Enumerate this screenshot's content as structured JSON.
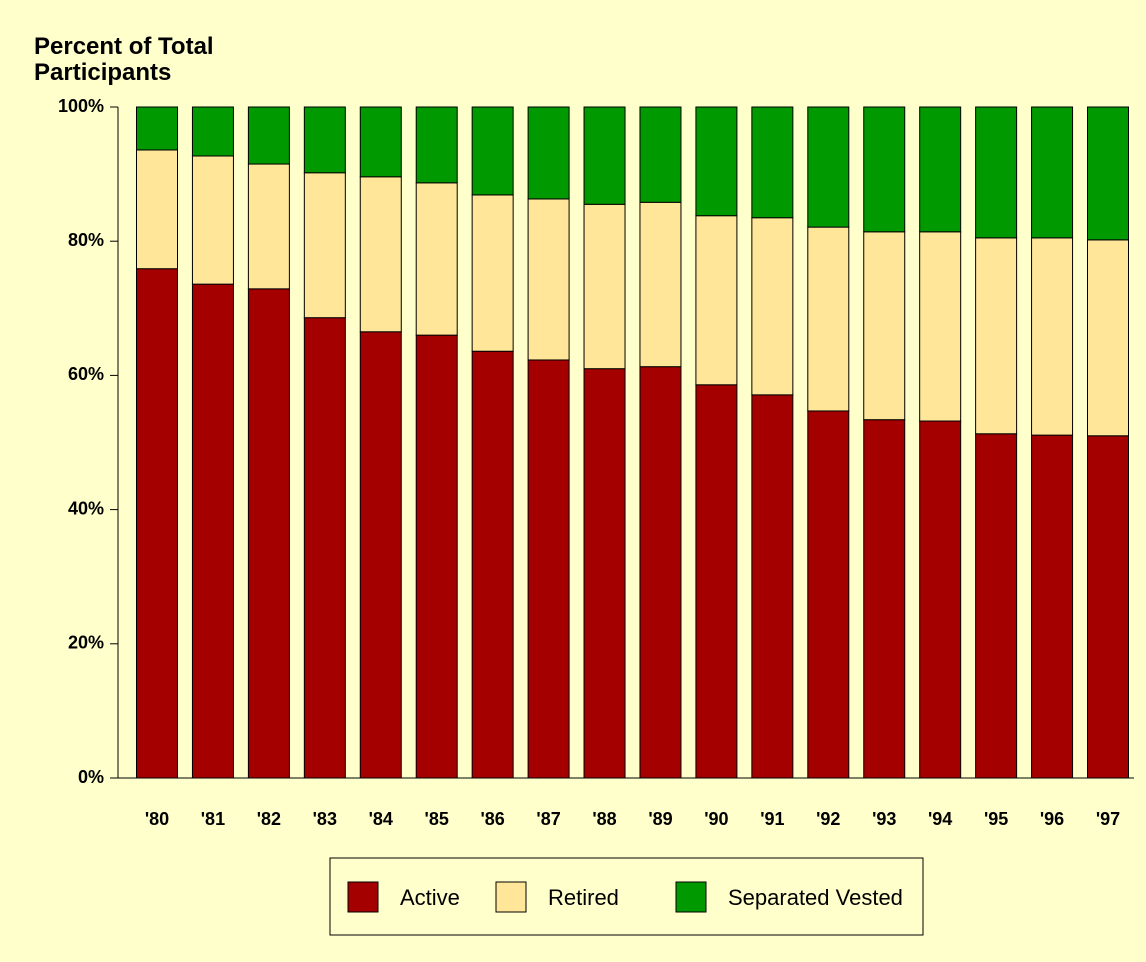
{
  "chart_data": {
    "type": "stacked_bar",
    "title": "Percent of Total Participants",
    "categories": [
      "'80",
      "'81",
      "'82",
      "'83",
      "'84",
      "'85",
      "'86",
      "'87",
      "'88",
      "'89",
      "'90",
      "'91",
      "'92",
      "'93",
      "'94",
      "'95",
      "'96",
      "'97"
    ],
    "series": [
      {
        "name": "Active",
        "color": "#a50000",
        "values": [
          75.9,
          73.6,
          72.9,
          68.6,
          66.5,
          66.0,
          63.6,
          62.3,
          61.0,
          61.3,
          58.6,
          57.1,
          54.7,
          53.4,
          53.2,
          51.3,
          51.1,
          51.0
        ]
      },
      {
        "name": "Retired",
        "color": "#ffe699",
        "values": [
          17.7,
          19.1,
          18.6,
          21.6,
          23.1,
          22.7,
          23.3,
          24.0,
          24.5,
          24.5,
          25.2,
          26.4,
          27.4,
          28.0,
          28.2,
          29.2,
          29.4,
          29.2
        ]
      },
      {
        "name": "Separated Vested",
        "color": "#009900",
        "values": [
          6.4,
          7.3,
          8.5,
          9.8,
          10.4,
          11.3,
          13.1,
          13.7,
          14.5,
          14.2,
          16.2,
          16.5,
          17.9,
          18.6,
          18.6,
          19.5,
          19.5,
          19.8
        ]
      }
    ],
    "ylim": [
      0,
      100
    ],
    "yticks": [
      {
        "value": 0,
        "label": "0%"
      },
      {
        "value": 20,
        "label": "20%"
      },
      {
        "value": 40,
        "label": "40%"
      },
      {
        "value": 60,
        "label": "60%"
      },
      {
        "value": 80,
        "label": "80%"
      },
      {
        "value": 100,
        "label": "100%"
      }
    ],
    "legend": "bottom"
  }
}
